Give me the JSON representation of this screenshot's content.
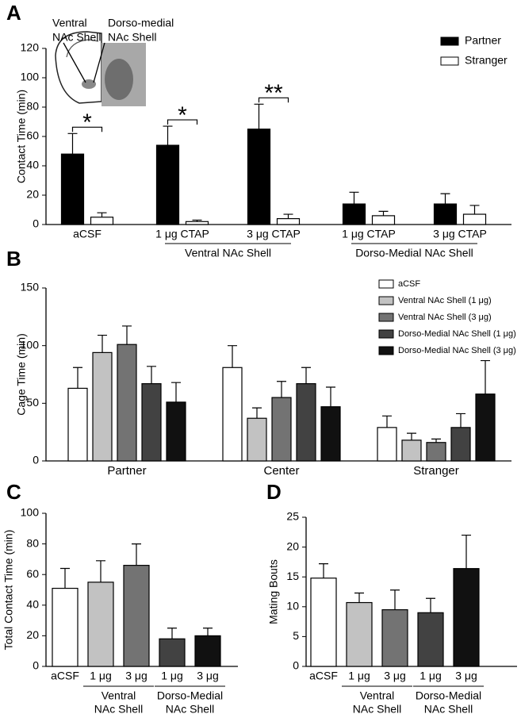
{
  "chart_data": [
    {
      "type": "bar",
      "panel_label": "A",
      "ylabel": "Contact Time (min)",
      "categories": [
        "aCSF",
        "1 μg CTAP",
        "3 μg CTAP",
        "1 μg CTAP",
        "3 μg CTAP"
      ],
      "groups": [
        [
          "Ventral NAc Shell"
        ],
        [
          "Dorso-Medial NAc Shell"
        ]
      ],
      "series": [
        {
          "name": "Partner",
          "color": "#000000",
          "values": [
            48,
            54,
            65,
            14,
            14
          ],
          "errors": [
            14,
            13,
            17,
            8,
            7
          ]
        },
        {
          "name": "Stranger",
          "color": "#ffffff",
          "values": [
            5,
            2,
            4,
            6,
            7
          ],
          "errors": [
            3,
            1,
            3,
            3,
            6
          ]
        }
      ],
      "significance": [
        "*",
        "*",
        "**"
      ],
      "inset_labels": [
        [
          "Ventral",
          "NAc Shell"
        ],
        [
          "Dorso-medial",
          "NAc Shell"
        ]
      ],
      "ylim": [
        0,
        120
      ],
      "yticks": [
        0,
        20,
        40,
        60,
        80,
        100,
        120
      ],
      "legend": "top-right"
    },
    {
      "type": "bar",
      "panel_label": "B",
      "ylabel": "Cage Time (min)",
      "categories": [
        "Partner",
        "Center",
        "Stranger"
      ],
      "series": [
        {
          "name": "aCSF",
          "color": "#ffffff",
          "values": [
            63,
            81,
            29
          ],
          "errors": [
            18,
            19,
            10
          ]
        },
        {
          "name": "Ventral NAc Shell (1 μg)",
          "color": "#c2c2c2",
          "values": [
            94,
            37,
            18
          ],
          "errors": [
            15,
            9,
            6
          ]
        },
        {
          "name": "Ventral NAc Shell (3 μg)",
          "color": "#737373",
          "values": [
            101,
            55,
            16
          ],
          "errors": [
            16,
            14,
            3
          ]
        },
        {
          "name": "Dorso-Medial NAc Shell (1 μg)",
          "color": "#424242",
          "values": [
            67,
            67,
            29
          ],
          "errors": [
            15,
            14,
            12
          ]
        },
        {
          "name": "Dorso-Medial NAc Shell (3 μg)",
          "color": "#111111",
          "values": [
            51,
            47,
            58
          ],
          "errors": [
            17,
            17,
            29
          ]
        }
      ],
      "ylim": [
        0,
        150
      ],
      "yticks": [
        0,
        50,
        100,
        150
      ],
      "legend": "top-right"
    },
    {
      "type": "bar",
      "panel_label": "C",
      "ylabel": "Total Contact Time (min)",
      "categories": [
        "aCSF",
        "1 μg",
        "3 μg",
        "1 μg",
        "3 μg"
      ],
      "groups": [
        [
          "Ventral",
          "NAc Shell"
        ],
        [
          "Dorso-Medial",
          "NAc Shell"
        ]
      ],
      "values": [
        51,
        55,
        66,
        18,
        20
      ],
      "errors": [
        13,
        14,
        14,
        7,
        5
      ],
      "colors": [
        "#ffffff",
        "#c2c2c2",
        "#737373",
        "#424242",
        "#111111"
      ],
      "ylim": [
        0,
        100
      ],
      "yticks": [
        0,
        20,
        40,
        60,
        80,
        100
      ]
    },
    {
      "type": "bar",
      "panel_label": "D",
      "ylabel": "Mating Bouts",
      "categories": [
        "aCSF",
        "1 μg",
        "3 μg",
        "1 μg",
        "3 μg"
      ],
      "groups": [
        [
          "Ventral",
          "NAc Shell"
        ],
        [
          "Dorso-Medial",
          "NAc Shell"
        ]
      ],
      "values": [
        14.8,
        10.7,
        9.5,
        9,
        16.4
      ],
      "errors": [
        2.4,
        1.6,
        3.3,
        2.4,
        5.6
      ],
      "colors": [
        "#ffffff",
        "#c2c2c2",
        "#737373",
        "#424242",
        "#111111"
      ],
      "ylim": [
        0,
        25
      ],
      "yticks": [
        0,
        5,
        10,
        15,
        20,
        25
      ]
    }
  ]
}
